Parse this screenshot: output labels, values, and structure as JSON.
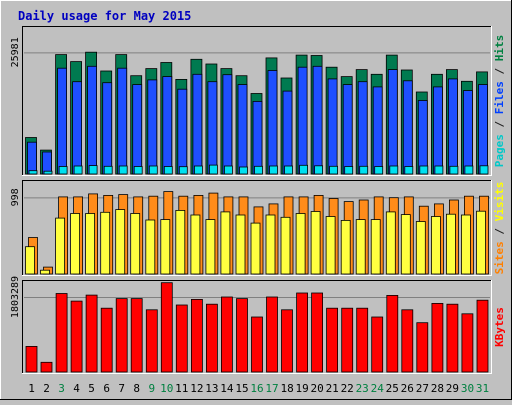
{
  "chart_data": {
    "type": "bar",
    "title": "Daily usage for May 2015",
    "categories": [
      "1",
      "2",
      "3",
      "4",
      "5",
      "6",
      "7",
      "8",
      "9",
      "10",
      "11",
      "12",
      "13",
      "14",
      "15",
      "16",
      "17",
      "18",
      "19",
      "20",
      "21",
      "22",
      "23",
      "24",
      "25",
      "26",
      "27",
      "28",
      "29",
      "30",
      "31"
    ],
    "weekend_days": [
      "3",
      "9",
      "10",
      "16",
      "17",
      "23",
      "24",
      "30",
      "31"
    ],
    "panels": [
      {
        "id": "hits",
        "ymax": 25981,
        "ymax_label": "25981",
        "grid": true,
        "label_parts": [
          {
            "text": "Pages",
            "color": "#00c8c8"
          },
          {
            "text": " / ",
            "color": "#202020"
          },
          {
            "text": "Files",
            "color": "#0040ff"
          },
          {
            "text": " / ",
            "color": "#202020"
          },
          {
            "text": "Hits",
            "color": "#008040"
          }
        ],
        "series": [
          {
            "name": "Hits",
            "color": "#007a50",
            "values": [
              7800,
              5100,
              25500,
              24000,
              26000,
              22000,
              25500,
              21000,
              22500,
              23800,
              20200,
              24500,
              23500,
              22500,
              21000,
              17200,
              24800,
              20500,
              25400,
              25300,
              22800,
              20800,
              22300,
              21300,
              25400,
              22200,
              17500,
              21300,
              22300,
              19800,
              21800
            ]
          },
          {
            "name": "Files",
            "color": "#1e4fff",
            "values": [
              6800,
              4700,
              22600,
              19700,
              23000,
              19500,
              22600,
              19100,
              20100,
              20800,
              18100,
              21300,
              19700,
              21200,
              19100,
              15500,
              22100,
              17700,
              22800,
              23000,
              20300,
              19100,
              19700,
              18600,
              22300,
              19900,
              15700,
              18600,
              20300,
              17800,
              19100
            ]
          },
          {
            "name": "Pages",
            "color": "#00e0f0",
            "values": [
              700,
              600,
              1600,
              1700,
              1800,
              1650,
              1700,
              1600,
              1700,
              1600,
              1550,
              1700,
              1900,
              1700,
              1500,
              1650,
              1700,
              1700,
              1850,
              1750,
              1650,
              1600,
              1650,
              1600,
              1700,
              1600,
              1700,
              1700,
              1650,
              1700,
              1750
            ]
          }
        ]
      },
      {
        "id": "visits",
        "ymax": 998,
        "ymax_label": "998",
        "grid": true,
        "label_parts": [
          {
            "text": "Sites",
            "color": "#ff8000"
          },
          {
            "text": " / ",
            "color": "#202020"
          },
          {
            "text": "Visits",
            "color": "#ffff00"
          }
        ],
        "series": [
          {
            "name": "Visits",
            "color": "#ff8c1a",
            "values": [
              475,
              90,
              1003,
              1003,
              1043,
              1023,
              1033,
              1003,
              1013,
              1073,
              1013,
              1023,
              1053,
              1003,
              1003,
              873,
              913,
              1003,
              1003,
              1023,
              983,
              943,
              963,
              1003,
              993,
              1003,
              883,
              913,
              963,
              1013,
              1013
            ]
          },
          {
            "name": "Sites",
            "color": "#ffff40",
            "values": [
              355,
              50,
              728,
              788,
              788,
              803,
              838,
              788,
              703,
              708,
              828,
              768,
              708,
              808,
              768,
              663,
              768,
              738,
              788,
              813,
              748,
              698,
              708,
              708,
              808,
              773,
              683,
              748,
              778,
              768,
              818
            ]
          }
        ]
      },
      {
        "id": "kbytes",
        "ymax": 1803289,
        "ymax_label": "1803289",
        "grid": true,
        "label_parts": [
          {
            "text": "KBytes",
            "color": "#ff0000"
          }
        ],
        "series": [
          {
            "name": "KBytes",
            "color": "#ff0000",
            "values": [
              615000,
              233000,
              1888000,
              1704000,
              1850000,
              1534000,
              1765000,
              1765000,
              1496000,
              2148000,
              1611000,
              1745000,
              1630000,
              1803000,
              1765000,
              1323000,
              1803000,
              1496000,
              1899000,
              1899000,
              1534000,
              1534000,
              1534000,
              1323000,
              1841000,
              1496000,
              1185000,
              1649000,
              1630000,
              1400000,
              1726000
            ]
          }
        ]
      }
    ]
  }
}
